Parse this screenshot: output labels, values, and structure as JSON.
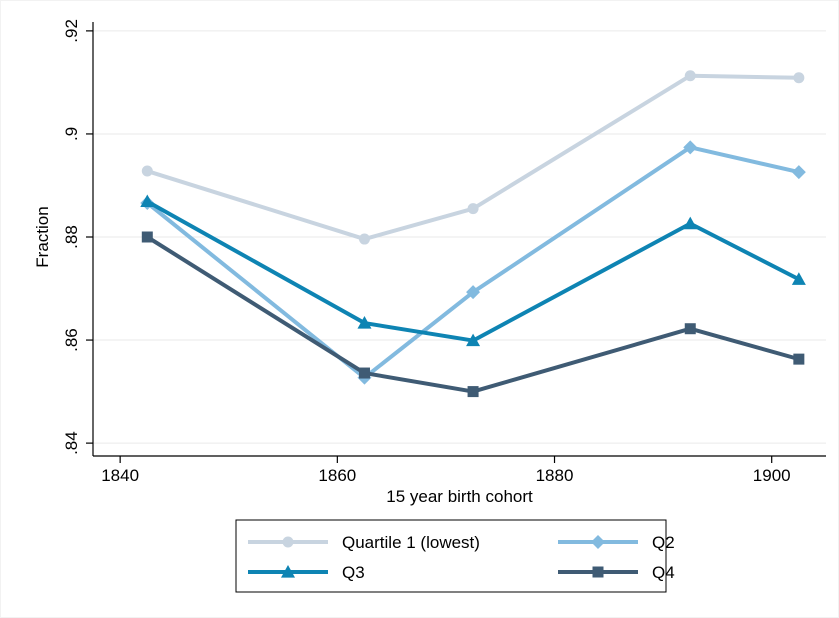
{
  "chart_data": {
    "type": "line",
    "title": "",
    "xlabel": "15 year birth cohort",
    "ylabel": "Fraction",
    "x": [
      1842.5,
      1862.5,
      1872.5,
      1892.5,
      1902.5
    ],
    "xlim": [
      1837.5,
      1905
    ],
    "ylim": [
      0.8375,
      0.9225
    ],
    "xticks": [
      1840,
      1860,
      1880,
      1900
    ],
    "xtick_labels": [
      "1840",
      "1860",
      "1880",
      "1900"
    ],
    "yticks": [
      0.84,
      0.86,
      0.88,
      0.9,
      0.92
    ],
    "ytick_labels": [
      ".84",
      ".86",
      ".88",
      ".9",
      ".92"
    ],
    "grid": true,
    "legend_position": "bottom",
    "series": [
      {
        "name": "Quartile 1 (lowest)",
        "color": "#c8d4e0",
        "marker": "circle",
        "values": [
          0.8928,
          0.8796,
          0.8855,
          0.9113,
          0.9109
        ]
      },
      {
        "name": "Q2",
        "color": "#82badf",
        "marker": "diamond",
        "values": [
          0.8866,
          0.8527,
          0.8693,
          0.8974,
          0.8926
        ]
      },
      {
        "name": "Q3",
        "color": "#0e84b3",
        "marker": "triangle",
        "values": [
          0.8869,
          0.8633,
          0.8599,
          0.8826,
          0.8718
        ]
      },
      {
        "name": "Q4",
        "color": "#3f5b74",
        "marker": "square",
        "values": [
          0.88,
          0.8536,
          0.85,
          0.8622,
          0.8563
        ]
      }
    ]
  }
}
